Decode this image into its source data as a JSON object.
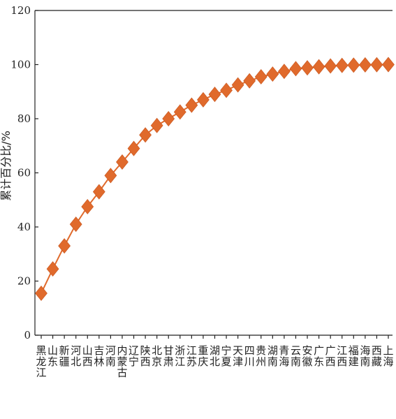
{
  "chart_data": {
    "type": "line",
    "ylabel": "累计百分比/%",
    "xlabel": "",
    "ylim": [
      0,
      120
    ],
    "yticks": [
      0,
      20,
      40,
      60,
      80,
      100,
      120
    ],
    "grid": false,
    "categories": [
      "黑龙江",
      "山东",
      "新疆",
      "河北",
      "山西",
      "吉林",
      "河南",
      "内蒙古",
      "辽宁",
      "陕西",
      "北京",
      "甘肃",
      "浙江",
      "江苏",
      "重庆",
      "湖北",
      "宁夏",
      "天津",
      "四川",
      "贵州",
      "湖南",
      "青海",
      "云南",
      "安徽",
      "广东",
      "广西",
      "江西",
      "福建",
      "海南",
      "西藏",
      "上海"
    ],
    "series": [
      {
        "values": [
          15.5,
          24.5,
          33,
          41,
          47.5,
          53,
          59,
          64,
          69,
          74,
          77.5,
          80,
          82.5,
          85,
          87,
          89,
          90.5,
          92.5,
          94,
          95.5,
          96.5,
          97.5,
          98.5,
          98.8,
          99.2,
          99.5,
          99.7,
          99.8,
          99.9,
          99.95,
          100
        ],
        "color": "#e06a2c",
        "marker": "diamond"
      }
    ]
  }
}
